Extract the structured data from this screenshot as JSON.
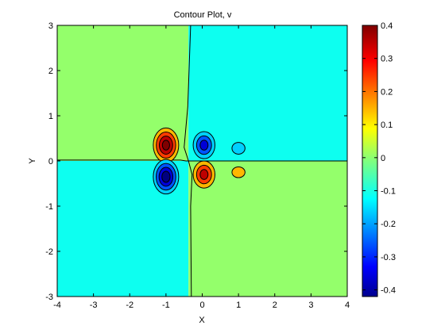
{
  "chart_data": {
    "type": "contour",
    "title": "Contour Plot, v",
    "xlabel": "X",
    "ylabel": "Y",
    "xlim": [
      -4,
      4
    ],
    "ylim": [
      -3,
      3
    ],
    "xticks": [
      -4,
      -3,
      -2,
      -1,
      0,
      1,
      2,
      3,
      4
    ],
    "yticks": [
      -3,
      -2,
      -1,
      0,
      1,
      2,
      3
    ],
    "xtick_labels": [
      "-4",
      "-3",
      "-2",
      "-1",
      "0",
      "1",
      "2",
      "3",
      "4"
    ],
    "ytick_labels": [
      "-3",
      "-2",
      "-1",
      "0",
      "1",
      "2",
      "3"
    ],
    "grid": false,
    "colormap": "jet",
    "colorbar": {
      "placement": "right",
      "range": [
        -0.42,
        0.4
      ],
      "ticks": [
        0.4,
        0.3,
        0.2,
        0.1,
        0,
        -0.1,
        -0.2,
        -0.3,
        -0.4
      ],
      "tick_labels": [
        "0.4",
        "0.3",
        "0.2",
        "0.1",
        "0",
        "-0.1",
        "-0.2",
        "-0.3",
        "-0.4"
      ]
    },
    "regions": [
      {
        "quadrant": "top-left",
        "level": 0,
        "color": "#94ff6b"
      },
      {
        "quadrant": "top-right",
        "level": -0.1,
        "color": "#0dfff0"
      },
      {
        "quadrant": "bottom-left",
        "level": -0.1,
        "color": "#0dfff0"
      },
      {
        "quadrant": "bottom-right",
        "level": 0,
        "color": "#94ff6b"
      }
    ],
    "features": [
      {
        "x": -1.0,
        "y": 0.35,
        "peak": 0.4,
        "rx": 0.35,
        "ry": 0.38,
        "sign": 1
      },
      {
        "x": -1.0,
        "y": -0.35,
        "peak": -0.42,
        "rx": 0.35,
        "ry": 0.38,
        "sign": -1
      },
      {
        "x": 0.05,
        "y": 0.35,
        "peak": -0.3,
        "rx": 0.3,
        "ry": 0.3,
        "sign": -1
      },
      {
        "x": 0.05,
        "y": -0.3,
        "peak": 0.3,
        "rx": 0.3,
        "ry": 0.3,
        "sign": 1
      },
      {
        "x": 1.0,
        "y": 0.28,
        "peak": -0.15,
        "rx": 0.18,
        "ry": 0.13,
        "sign": -1
      },
      {
        "x": 1.0,
        "y": -0.25,
        "peak": 0.12,
        "rx": 0.18,
        "ry": 0.12,
        "sign": 1
      }
    ],
    "zero_contour": {
      "horizontal": [
        [
          -4,
          0.02
        ],
        [
          -0.6,
          0.02
        ],
        [
          -0.45,
          0.0
        ],
        [
          4,
          0.0
        ]
      ],
      "vertical": [
        [
          -0.32,
          3
        ],
        [
          -0.4,
          1.2
        ],
        [
          -0.5,
          0.3
        ],
        [
          -0.38,
          0.0
        ],
        [
          -0.28,
          -0.3
        ],
        [
          -0.32,
          -1.0
        ],
        [
          -0.3,
          -3
        ]
      ]
    }
  }
}
